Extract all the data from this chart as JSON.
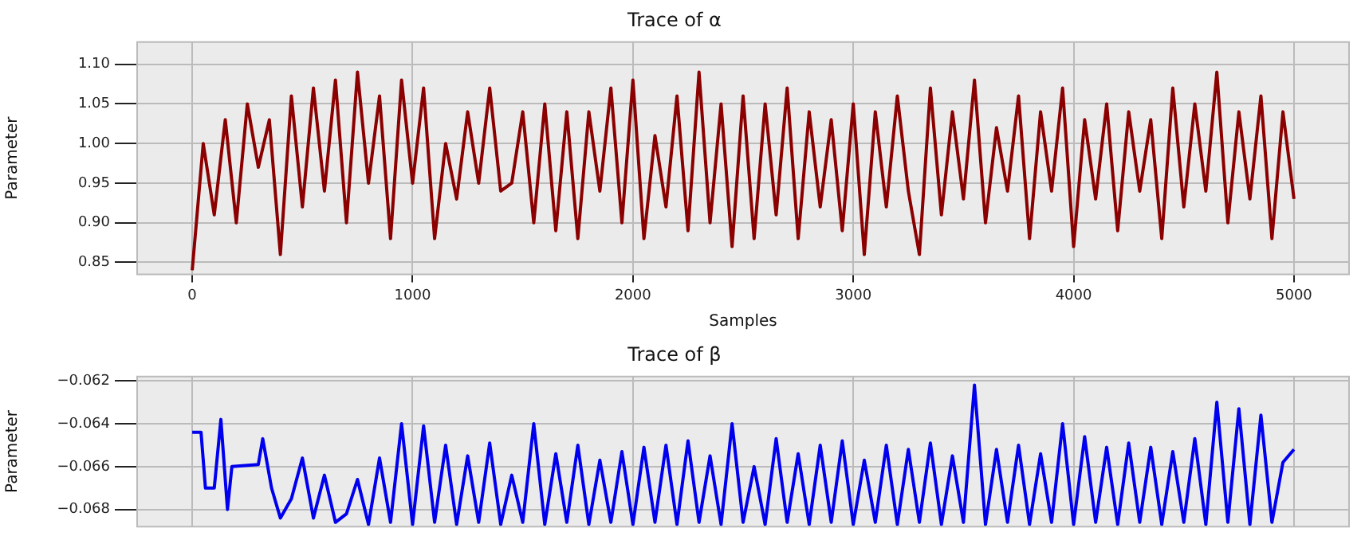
{
  "chart_data": [
    {
      "type": "line",
      "title": "Trace of α",
      "xlabel": "Samples",
      "ylabel": "Parameter",
      "grid": true,
      "legend": false,
      "marker": "none",
      "xlim": [
        -250,
        5250
      ],
      "xticks": [
        0,
        1000,
        2000,
        3000,
        4000,
        5000
      ],
      "ylim": [
        0.835,
        1.128
      ],
      "yticks": [
        {
          "value": 0.85,
          "label": "0.85"
        },
        {
          "value": 0.9,
          "label": "0.90"
        },
        {
          "value": 0.95,
          "label": "0.95"
        },
        {
          "value": 1.0,
          "label": "1.00"
        },
        {
          "value": 1.05,
          "label": "1.05"
        },
        {
          "value": 1.1,
          "label": "1.10"
        }
      ],
      "x": [
        0,
        50,
        100,
        150,
        200,
        250,
        300,
        350,
        400,
        450,
        500,
        550,
        600,
        650,
        700,
        750,
        800,
        850,
        900,
        950,
        1000,
        1050,
        1100,
        1150,
        1200,
        1250,
        1300,
        1350,
        1400,
        1450,
        1500,
        1550,
        1600,
        1650,
        1700,
        1750,
        1800,
        1850,
        1900,
        1950,
        2000,
        2050,
        2100,
        2150,
        2200,
        2250,
        2300,
        2350,
        2400,
        2450,
        2500,
        2550,
        2600,
        2650,
        2700,
        2750,
        2800,
        2850,
        2900,
        2950,
        3000,
        3050,
        3100,
        3150,
        3200,
        3250,
        3300,
        3350,
        3400,
        3450,
        3500,
        3550,
        3600,
        3650,
        3700,
        3750,
        3800,
        3850,
        3900,
        3950,
        4000,
        4050,
        4100,
        4150,
        4200,
        4250,
        4300,
        4350,
        4400,
        4450,
        4500,
        4550,
        4600,
        4650,
        4700,
        4750,
        4800,
        4850,
        4900,
        4950,
        5000
      ],
      "series": [
        {
          "color": "#8b0000",
          "values": [
            0.84,
            1.0,
            0.91,
            1.03,
            0.9,
            1.05,
            0.97,
            1.03,
            0.86,
            1.06,
            0.92,
            1.07,
            0.94,
            1.08,
            0.9,
            1.09,
            0.95,
            1.06,
            0.88,
            1.08,
            0.95,
            1.07,
            0.88,
            1.0,
            0.93,
            1.04,
            0.95,
            1.07,
            0.94,
            0.95,
            1.04,
            0.9,
            1.05,
            0.89,
            1.04,
            0.88,
            1.04,
            0.94,
            1.07,
            0.9,
            1.08,
            0.88,
            1.01,
            0.92,
            1.06,
            0.89,
            1.09,
            0.9,
            1.05,
            0.87,
            1.06,
            0.88,
            1.05,
            0.91,
            1.07,
            0.88,
            1.04,
            0.92,
            1.03,
            0.89,
            1.05,
            0.86,
            1.04,
            0.92,
            1.06,
            0.94,
            0.86,
            1.07,
            0.91,
            1.04,
            0.93,
            1.08,
            0.9,
            1.02,
            0.94,
            1.06,
            0.88,
            1.04,
            0.94,
            1.07,
            0.87,
            1.03,
            0.93,
            1.05,
            0.89,
            1.04,
            0.94,
            1.03,
            0.88,
            1.07,
            0.92,
            1.05,
            0.94,
            1.09,
            0.9,
            1.04,
            0.93,
            1.06,
            0.88,
            1.04,
            0.93
          ]
        }
      ]
    },
    {
      "type": "line",
      "title": "Trace of β",
      "ylabel": "Parameter",
      "grid": true,
      "legend": false,
      "marker": "none",
      "tick_labels": "y",
      "xlim": [
        -250,
        5250
      ],
      "xticks": [
        0,
        1000,
        2000,
        3000,
        4000,
        5000
      ],
      "ylim": [
        -0.0688,
        -0.0618
      ],
      "yticks": [
        {
          "value": -0.068,
          "label": "−0.068"
        },
        {
          "value": -0.066,
          "label": "−0.066"
        },
        {
          "value": -0.064,
          "label": "−0.064"
        },
        {
          "value": -0.062,
          "label": "−0.062"
        }
      ],
      "x": [
        0,
        40,
        60,
        100,
        130,
        160,
        180,
        300,
        320,
        360,
        400,
        450,
        500,
        550,
        600,
        650,
        700,
        750,
        800,
        850,
        900,
        950,
        1000,
        1050,
        1100,
        1150,
        1200,
        1250,
        1300,
        1350,
        1400,
        1450,
        1500,
        1550,
        1600,
        1650,
        1700,
        1750,
        1800,
        1850,
        1900,
        1950,
        2000,
        2050,
        2100,
        2150,
        2200,
        2250,
        2300,
        2350,
        2400,
        2450,
        2500,
        2550,
        2600,
        2650,
        2700,
        2750,
        2800,
        2850,
        2900,
        2950,
        3000,
        3050,
        3100,
        3150,
        3200,
        3250,
        3300,
        3350,
        3400,
        3450,
        3500,
        3550,
        3600,
        3650,
        3700,
        3750,
        3800,
        3850,
        3900,
        3950,
        4000,
        4050,
        4100,
        4150,
        4200,
        4250,
        4300,
        4350,
        4400,
        4450,
        4500,
        4550,
        4600,
        4650,
        4700,
        4750,
        4800,
        4850,
        4900,
        4950,
        5000
      ],
      "series": [
        {
          "color": "#0000ee",
          "values": [
            -0.0644,
            -0.0644,
            -0.067,
            -0.067,
            -0.0638,
            -0.068,
            -0.066,
            -0.0659,
            -0.0647,
            -0.067,
            -0.0684,
            -0.0675,
            -0.0656,
            -0.0684,
            -0.0664,
            -0.0686,
            -0.0682,
            -0.0666,
            -0.0687,
            -0.0656,
            -0.0686,
            -0.064,
            -0.0687,
            -0.0641,
            -0.0686,
            -0.065,
            -0.0687,
            -0.0655,
            -0.0686,
            -0.0649,
            -0.0687,
            -0.0664,
            -0.0686,
            -0.064,
            -0.0687,
            -0.0654,
            -0.0686,
            -0.065,
            -0.0687,
            -0.0657,
            -0.0686,
            -0.0653,
            -0.0687,
            -0.0651,
            -0.0686,
            -0.065,
            -0.0687,
            -0.0648,
            -0.0686,
            -0.0655,
            -0.0687,
            -0.064,
            -0.0686,
            -0.066,
            -0.0687,
            -0.0647,
            -0.0686,
            -0.0654,
            -0.0687,
            -0.065,
            -0.0686,
            -0.0648,
            -0.0687,
            -0.0657,
            -0.0686,
            -0.065,
            -0.0687,
            -0.0652,
            -0.0686,
            -0.0649,
            -0.0687,
            -0.0655,
            -0.0686,
            -0.0622,
            -0.0687,
            -0.0652,
            -0.0686,
            -0.065,
            -0.0687,
            -0.0654,
            -0.0686,
            -0.064,
            -0.0687,
            -0.0646,
            -0.0686,
            -0.0651,
            -0.0687,
            -0.0649,
            -0.0686,
            -0.0651,
            -0.0687,
            -0.0653,
            -0.0686,
            -0.0647,
            -0.0687,
            -0.063,
            -0.0686,
            -0.0633,
            -0.0687,
            -0.0636,
            -0.0686,
            -0.0658,
            -0.0652
          ]
        }
      ]
    }
  ]
}
